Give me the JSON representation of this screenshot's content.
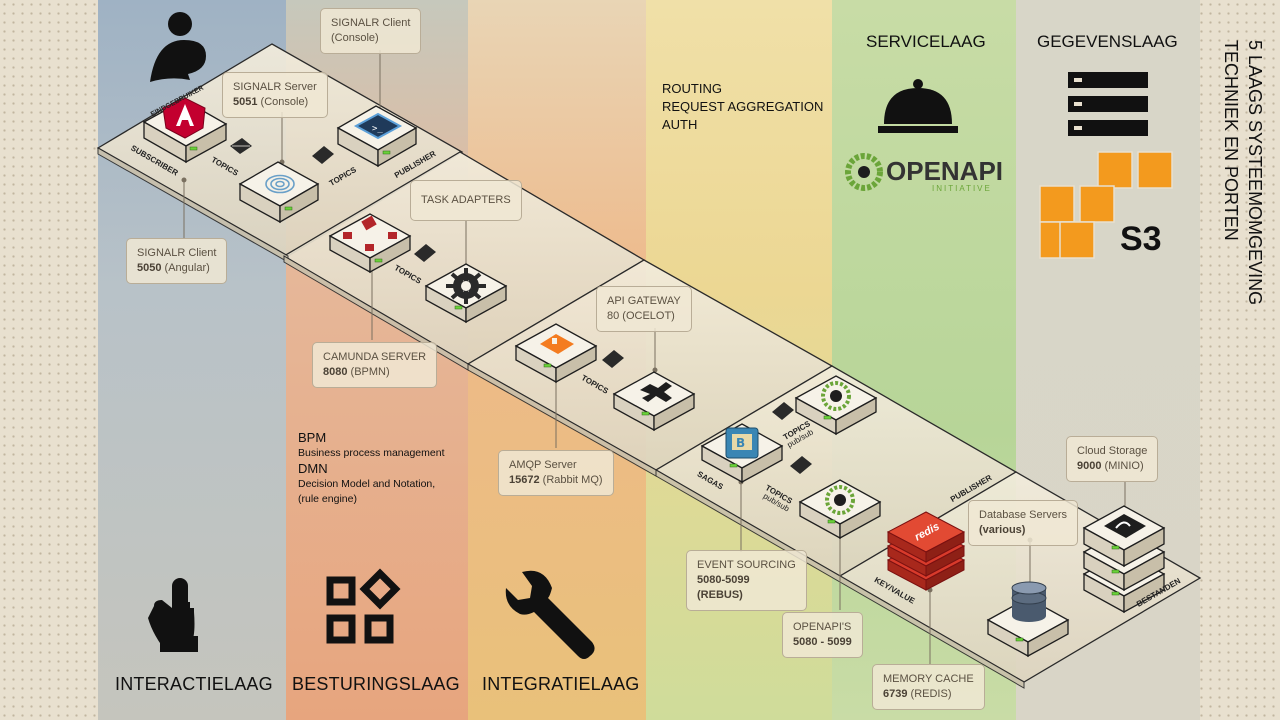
{
  "title": {
    "line1": "5 LAAGS SYSTEEMOMGEVING",
    "line2": "TECHNIEK EN PORTEN"
  },
  "headers": {
    "routing": [
      "ROUTING",
      "REQUEST AGGREGATION",
      "AUTH"
    ],
    "servicelaag": "SERVICELAAG",
    "gegevenslaag": "GEGEVENSLAAG",
    "openapi": "OPENAPI",
    "openapi_sub": "INITIATIVE",
    "s3": "S3"
  },
  "layers": {
    "interactie": "INTERACTIELAAG",
    "besturing": "BESTURINGSLAAG",
    "integratie": "INTEGRATIELAAG"
  },
  "eindgebruiker": "EINDGEBRUIKER",
  "callouts": {
    "signalr_console_client": {
      "line1": "SIGNALR Client",
      "line2": "(Console)"
    },
    "signalr_server": {
      "line1": "SIGNALR Server",
      "port": "5051",
      "extra": " (Console)"
    },
    "signalr_angular": {
      "line1": "SIGNALR Client",
      "port": "5050",
      "extra": " (Angular)"
    },
    "task_adapters": {
      "line1": "TASK ADAPTERS"
    },
    "camunda": {
      "line1": "CAMUNDA SERVER",
      "port": "8080",
      "extra": " (BPMN)"
    },
    "api_gateway": {
      "line1": "API GATEWAY",
      "line2": "80 (OCELOT)"
    },
    "amqp": {
      "line1": "AMQP Server",
      "port": "15672",
      "extra": " (Rabbit MQ)"
    },
    "event_sourcing": {
      "line1": "EVENT SOURCING",
      "port": "5080-5099",
      "line3": "(REBUS)"
    },
    "openapis": {
      "line1": "OPENAPI'S",
      "port": "5080 - 5099"
    },
    "memory_cache": {
      "line1": "MEMORY CACHE",
      "port": "6739",
      "extra": " (REDIS)"
    },
    "database_servers": {
      "line1": "Database Servers",
      "port": "(various)"
    },
    "cloud_storage": {
      "line1": "Cloud Storage",
      "port": "9000",
      "extra": " (MINIO)"
    }
  },
  "bpm_note": {
    "bpm": "BPM",
    "bpm_desc": "Business process management",
    "dmn": "DMN",
    "dmn_desc1": "Decision Model and Notation,",
    "dmn_desc2": "(rule engine)"
  },
  "platform_labels": {
    "subscriber": "SUBSCRIBER",
    "topics1": "TOPICS",
    "topics2": "TOPICS",
    "publisher1": "PUBLISHER",
    "topics3": "TOPICS",
    "topics4": "TOPICS",
    "topics5": "TOPICS",
    "pubsub1": "pub/sub",
    "sagas": "SAGAS",
    "topics6": "TOPICS",
    "pubsub2": "pub/sub",
    "publisher2": "PUBLISHER",
    "keyvalue": "KEY/VALUE",
    "bestanden": "BESTANDEN",
    "redis": "redis"
  },
  "colors": {
    "aws_orange": "#f39a1e",
    "angular_red": "#c3002f",
    "openapi_green": "#6ba539"
  }
}
